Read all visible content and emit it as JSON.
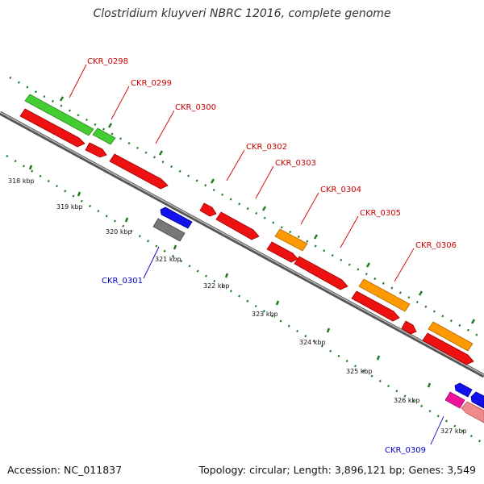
{
  "title": "Clostridium kluyveri NBRC 12016, complete genome",
  "accession": "Accession: NC_011837",
  "summary": "Topology: circular; Length: 3,896,121 bp; Genes: 3,549",
  "colors": {
    "backbone": "#8a8a8a",
    "tick_green": "#1f7a1f",
    "label_red": "#cc0000",
    "label_blue": "#0000cc",
    "green_gene": "#44cc33",
    "red_gene": "#ee1111",
    "orange_gene": "#ff9900",
    "blue_gene": "#1111ee",
    "grey_gene": "#777777",
    "magenta_gene": "#ee1199",
    "pink_gene": "#f08a8a"
  },
  "ticks": [
    "318 kbp",
    "319 kbp",
    "320 kbp",
    "321 kbp",
    "322 kbp",
    "323 kbp",
    "324 kbp",
    "325 kbp",
    "326 kbp",
    "327 kbp"
  ],
  "gene_labels": [
    {
      "name": "CKR_0298",
      "strand": "plus"
    },
    {
      "name": "CKR_0299",
      "strand": "plus"
    },
    {
      "name": "CKR_0300",
      "strand": "plus"
    },
    {
      "name": "CKR_0302",
      "strand": "plus"
    },
    {
      "name": "CKR_0303",
      "strand": "plus"
    },
    {
      "name": "CKR_0304",
      "strand": "plus"
    },
    {
      "name": "CKR_0305",
      "strand": "plus"
    },
    {
      "name": "CKR_0306",
      "strand": "plus"
    },
    {
      "name": "CKR_0301",
      "strand": "minus"
    },
    {
      "name": "CKR_0309",
      "strand": "minus"
    }
  ]
}
